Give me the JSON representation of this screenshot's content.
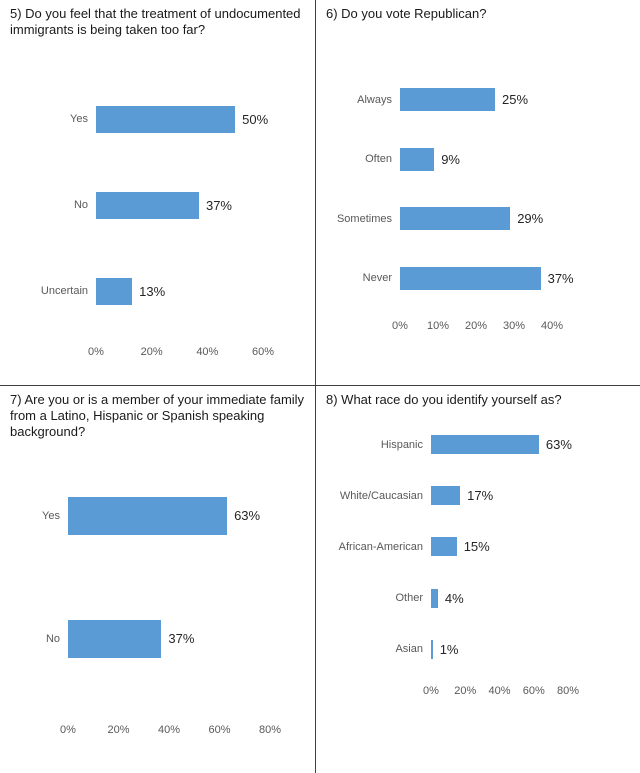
{
  "bar_color": "#5b9bd5",
  "chart_data": [
    {
      "type": "bar",
      "orientation": "horizontal",
      "title": "5) Do you feel that the treatment of undocumented immigrants is being taken too far?",
      "categories": [
        "Yes",
        "No",
        "Uncertain"
      ],
      "values": [
        50,
        37,
        13
      ],
      "value_labels": [
        "50%",
        "37%",
        "13%"
      ],
      "xlim": [
        0,
        60
      ],
      "tick_values": [
        0,
        20,
        40,
        60
      ],
      "tick_labels": [
        "0%",
        "20%",
        "40%",
        "60%"
      ],
      "grid": false,
      "legend": "none",
      "bar_color": "#5b9bd5"
    },
    {
      "type": "bar",
      "orientation": "horizontal",
      "title": "6) Do you vote Republican?",
      "categories": [
        "Always",
        "Often",
        "Sometimes",
        "Never"
      ],
      "values": [
        25,
        9,
        29,
        37
      ],
      "value_labels": [
        "25%",
        "9%",
        "29%",
        "37%"
      ],
      "xlim": [
        0,
        40
      ],
      "tick_values": [
        0,
        10,
        20,
        30,
        40
      ],
      "tick_labels": [
        "0%",
        "10%",
        "20%",
        "30%",
        "40%"
      ],
      "grid": false,
      "legend": "none",
      "bar_color": "#5b9bd5"
    },
    {
      "type": "bar",
      "orientation": "horizontal",
      "title": "7) Are you or is a member of your immediate family from a Latino, Hispanic or Spanish speaking background?",
      "categories": [
        "Yes",
        "No"
      ],
      "values": [
        63,
        37
      ],
      "value_labels": [
        "63%",
        "37%"
      ],
      "xlim": [
        0,
        80
      ],
      "tick_values": [
        0,
        20,
        40,
        60,
        80
      ],
      "tick_labels": [
        "0%",
        "20%",
        "40%",
        "60%",
        "80%"
      ],
      "grid": false,
      "legend": "none",
      "bar_color": "#5b9bd5"
    },
    {
      "type": "bar",
      "orientation": "horizontal",
      "title": "8) What race do you identify yourself as?",
      "categories": [
        "Hispanic",
        "White/Caucasian",
        "African-American",
        "Other",
        "Asian"
      ],
      "values": [
        63,
        17,
        15,
        4,
        1
      ],
      "value_labels": [
        "63%",
        "17%",
        "15%",
        "4%",
        "1%"
      ],
      "xlim": [
        0,
        80
      ],
      "tick_values": [
        0,
        20,
        40,
        60,
        80
      ],
      "tick_labels": [
        "0%",
        "20%",
        "40%",
        "60%",
        "80%"
      ],
      "grid": false,
      "legend": "none",
      "bar_color": "#5b9bd5"
    }
  ]
}
